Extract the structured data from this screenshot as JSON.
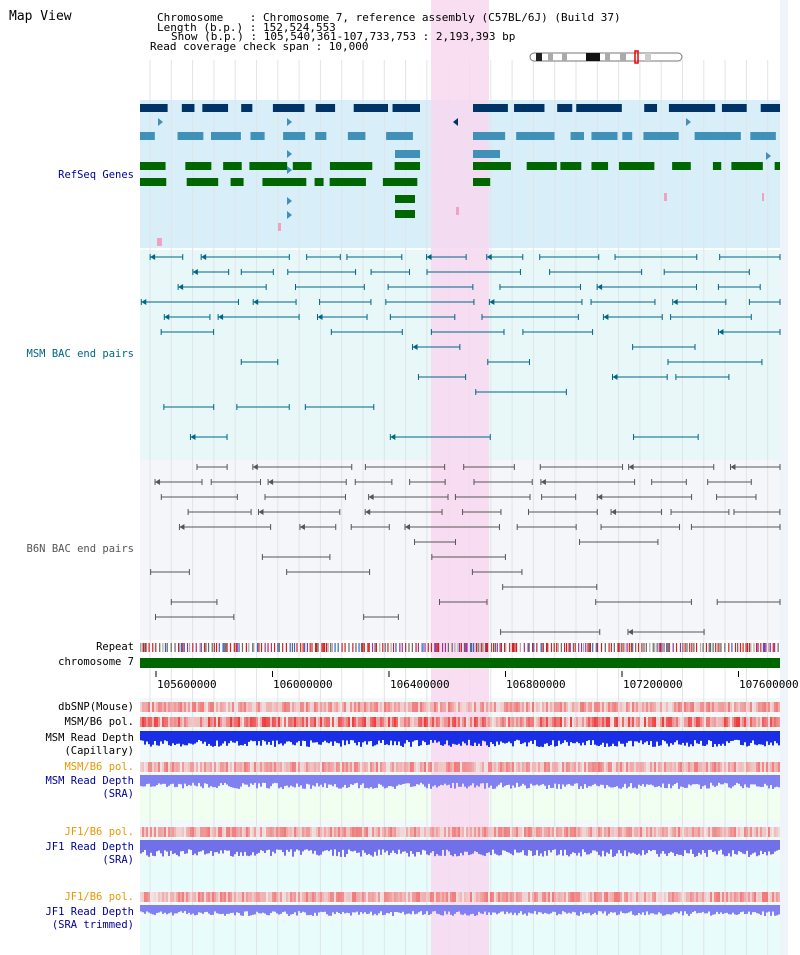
{
  "title": "Map View",
  "header": {
    "line1": "Chromosome    : Chromosome 7, reference assembly (C57BL/6J) (Build 37)",
    "line2": "Length (b.p.) : 152,524,553",
    "line3": "Show (b.p.) : 105,540,361-107,733,753 : 2,193,393 bp",
    "line4": "Read coverage check span : 10,000"
  },
  "tracks": {
    "refseq": "RefSeq Genes",
    "msm_bac": "MSM BAC end pairs",
    "b6n_bac": "B6N BAC end pairs",
    "repeat": "Repeat",
    "chromosome": "chromosome 7",
    "dbsnp": "dbSNP(Mouse)",
    "msm_b6_pol_1": "MSM/B6 pol.",
    "msm_depth_cap_1": "MSM Read Depth",
    "msm_depth_cap_2": "(Capillary)",
    "msm_b6_pol_2": "MSM/B6 pol.",
    "msm_depth_sra_1": "MSM Read Depth",
    "msm_depth_sra_2": "(SRA)",
    "jf1_b6_pol_1": "JF1/B6 pol.",
    "jf1_depth_sra_1": "JF1 Read Depth",
    "jf1_depth_sra_2": "(SRA)",
    "jf1_b6_pol_2": "JF1/B6 pol.",
    "jf1_depth_trim_1": "JF1 Read Depth",
    "jf1_depth_trim_2": "(SRA trimmed)"
  },
  "axis": [
    "105600000",
    "106000000",
    "106400000",
    "106800000",
    "107200000",
    "107600000"
  ],
  "colors": {
    "refseq_bg": "#d8eef8",
    "msm_bac_bg": "#e8f8f8",
    "b6n_bac_bg": "#f4f6fa",
    "highlight": "#f8d8f0",
    "dark_gene": "#003366",
    "mid_gene": "#4090b8",
    "green_gene": "#006600",
    "bac_msm": "#006688",
    "bac_b6n": "#555555",
    "label_navy": "#000099",
    "label_teal": "#006688",
    "label_gray": "#555555",
    "label_orange": "#e69900"
  }
}
